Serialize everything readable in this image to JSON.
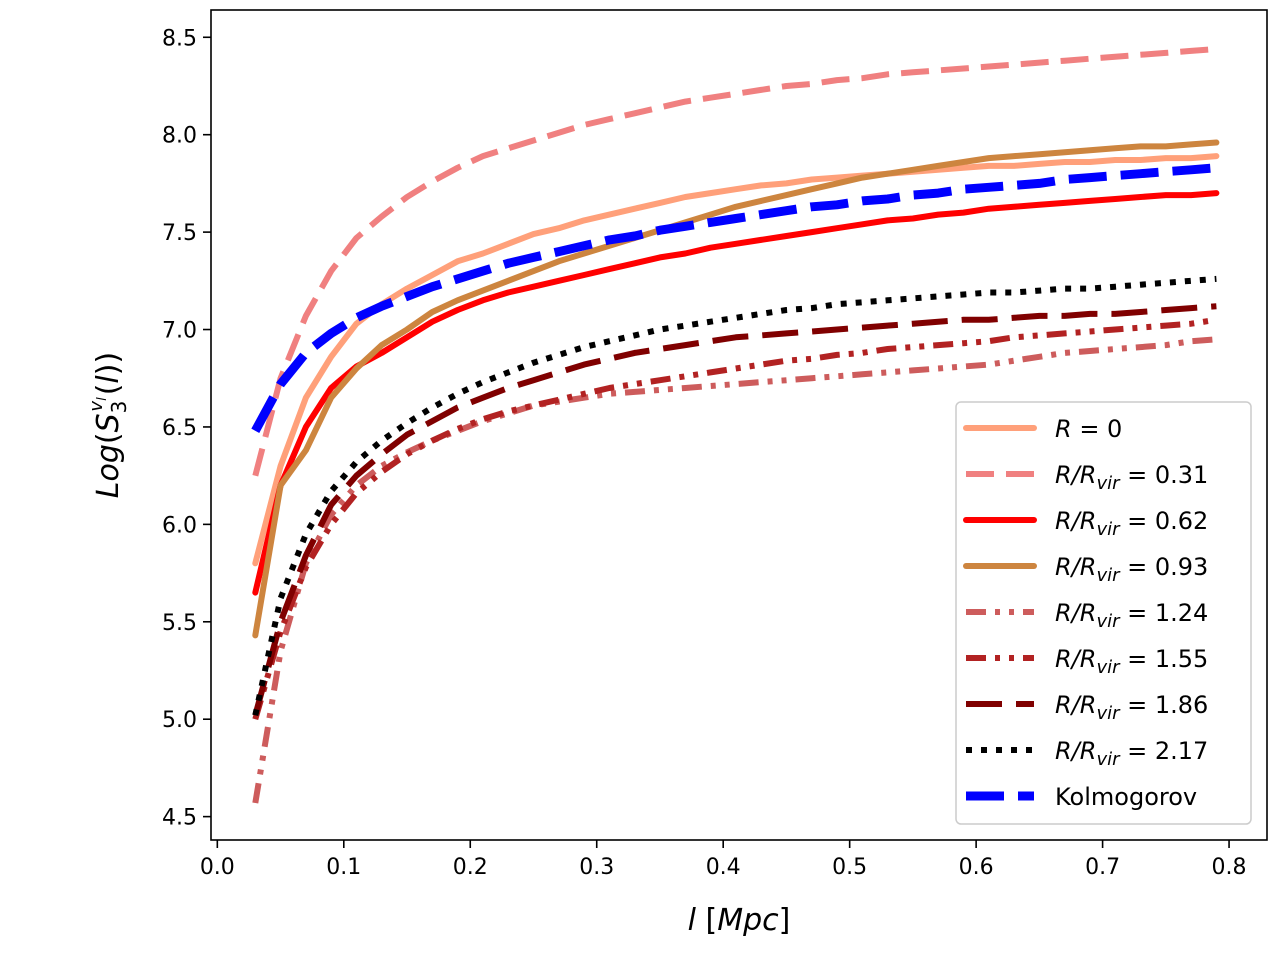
{
  "chart_data": {
    "type": "line",
    "xlabel_parts": [
      "l",
      " [",
      "Mpc",
      "]"
    ],
    "ylabel": "Log(S3^{v_l}(l))",
    "ylabel_parts": [
      "Log",
      "(",
      "S",
      "3",
      "v",
      "l",
      "(",
      "l",
      "))"
    ],
    "xlim": [
      -0.005,
      0.83
    ],
    "ylim": [
      4.38,
      8.64
    ],
    "xticks": [
      0.0,
      0.1,
      0.2,
      0.3,
      0.4,
      0.5,
      0.6,
      0.7,
      0.8
    ],
    "xtick_labels": [
      "0.0",
      "0.1",
      "0.2",
      "0.3",
      "0.4",
      "0.5",
      "0.6",
      "0.7",
      "0.8"
    ],
    "yticks": [
      4.5,
      5.0,
      5.5,
      6.0,
      6.5,
      7.0,
      7.5,
      8.0,
      8.5
    ],
    "ytick_labels": [
      "4.5",
      "5.0",
      "5.5",
      "6.0",
      "6.5",
      "7.0",
      "7.5",
      "8.0",
      "8.5"
    ],
    "legend_position": "lower-right",
    "x": [
      0.03,
      0.05,
      0.07,
      0.09,
      0.11,
      0.13,
      0.15,
      0.17,
      0.19,
      0.21,
      0.23,
      0.25,
      0.27,
      0.29,
      0.31,
      0.33,
      0.35,
      0.37,
      0.39,
      0.41,
      0.43,
      0.45,
      0.47,
      0.49,
      0.51,
      0.53,
      0.55,
      0.57,
      0.59,
      0.61,
      0.63,
      0.65,
      0.67,
      0.69,
      0.71,
      0.73,
      0.75,
      0.77,
      0.79
    ],
    "series": [
      {
        "name": "R = 0",
        "legend": {
          "main": "R",
          "sub": "",
          "rest": " = 0"
        },
        "color": "#ffa07a",
        "dash": "solid",
        "values": [
          5.8,
          6.3,
          6.65,
          6.86,
          7.03,
          7.13,
          7.21,
          7.28,
          7.35,
          7.39,
          7.44,
          7.49,
          7.52,
          7.56,
          7.59,
          7.62,
          7.65,
          7.68,
          7.7,
          7.72,
          7.74,
          7.75,
          7.77,
          7.78,
          7.79,
          7.8,
          7.81,
          7.82,
          7.83,
          7.84,
          7.84,
          7.85,
          7.86,
          7.86,
          7.87,
          7.87,
          7.88,
          7.88,
          7.89
        ]
      },
      {
        "name": "R/Rvir = 0.31",
        "legend": {
          "main": "R/R",
          "sub": "vir",
          "rest": " = 0.31"
        },
        "color": "#f08080",
        "dash": "dashed",
        "values": [
          6.25,
          6.75,
          7.07,
          7.3,
          7.47,
          7.58,
          7.68,
          7.76,
          7.83,
          7.89,
          7.93,
          7.97,
          8.01,
          8.05,
          8.08,
          8.11,
          8.14,
          8.17,
          8.19,
          8.21,
          8.23,
          8.25,
          8.26,
          8.28,
          8.29,
          8.31,
          8.32,
          8.33,
          8.34,
          8.35,
          8.36,
          8.37,
          8.38,
          8.39,
          8.4,
          8.41,
          8.42,
          8.43,
          8.44
        ]
      },
      {
        "name": "R/Rvir = 0.62",
        "legend": {
          "main": "R/R",
          "sub": "vir",
          "rest": " = 0.62"
        },
        "color": "#ff0000",
        "dash": "solid",
        "values": [
          5.65,
          6.2,
          6.5,
          6.7,
          6.81,
          6.88,
          6.96,
          7.04,
          7.1,
          7.15,
          7.19,
          7.22,
          7.25,
          7.28,
          7.31,
          7.34,
          7.37,
          7.39,
          7.42,
          7.44,
          7.46,
          7.48,
          7.5,
          7.52,
          7.54,
          7.56,
          7.57,
          7.59,
          7.6,
          7.62,
          7.63,
          7.64,
          7.65,
          7.66,
          7.67,
          7.68,
          7.69,
          7.69,
          7.7
        ]
      },
      {
        "name": "R/Rvir = 0.93",
        "legend": {
          "main": "R/R",
          "sub": "vir",
          "rest": " = 0.93"
        },
        "color": "#cd853f",
        "dash": "solid",
        "values": [
          5.43,
          6.2,
          6.38,
          6.65,
          6.8,
          6.92,
          7.0,
          7.09,
          7.15,
          7.2,
          7.25,
          7.3,
          7.35,
          7.39,
          7.43,
          7.47,
          7.51,
          7.55,
          7.59,
          7.63,
          7.66,
          7.69,
          7.72,
          7.75,
          7.78,
          7.8,
          7.82,
          7.84,
          7.86,
          7.88,
          7.89,
          7.9,
          7.91,
          7.92,
          7.93,
          7.94,
          7.94,
          7.95,
          7.96
        ]
      },
      {
        "name": "R/Rvir = 1.24",
        "legend": {
          "main": "R/R",
          "sub": "vir",
          "rest": " = 1.24"
        },
        "color": "#cd5c5c",
        "dash": "dashdotdot",
        "values": [
          4.57,
          5.35,
          5.8,
          6.05,
          6.2,
          6.3,
          6.37,
          6.43,
          6.48,
          6.53,
          6.57,
          6.61,
          6.63,
          6.65,
          6.67,
          6.68,
          6.69,
          6.7,
          6.71,
          6.72,
          6.73,
          6.74,
          6.75,
          6.76,
          6.77,
          6.78,
          6.79,
          6.8,
          6.81,
          6.82,
          6.84,
          6.86,
          6.88,
          6.89,
          6.9,
          6.91,
          6.92,
          6.94,
          6.95
        ]
      },
      {
        "name": "R/Rvir = 1.55",
        "legend": {
          "main": "R/R",
          "sub": "vir",
          "rest": " = 1.55"
        },
        "color": "#b22222",
        "dash": "dashdotdot",
        "values": [
          5.0,
          5.45,
          5.78,
          6.0,
          6.16,
          6.27,
          6.36,
          6.43,
          6.49,
          6.54,
          6.58,
          6.61,
          6.64,
          6.67,
          6.7,
          6.72,
          6.74,
          6.76,
          6.78,
          6.8,
          6.82,
          6.84,
          6.85,
          6.87,
          6.88,
          6.9,
          6.91,
          6.92,
          6.93,
          6.94,
          6.96,
          6.97,
          6.98,
          6.99,
          7.0,
          7.01,
          7.02,
          7.03,
          7.05
        ]
      },
      {
        "name": "R/Rvir = 1.86",
        "legend": {
          "main": "R/R",
          "sub": "vir",
          "rest": " = 1.86"
        },
        "color": "#800000",
        "dash": "longdash",
        "values": [
          5.02,
          5.5,
          5.84,
          6.1,
          6.25,
          6.36,
          6.46,
          6.53,
          6.6,
          6.65,
          6.7,
          6.74,
          6.78,
          6.82,
          6.85,
          6.88,
          6.9,
          6.92,
          6.94,
          6.96,
          6.97,
          6.98,
          6.99,
          7.0,
          7.01,
          7.02,
          7.03,
          7.04,
          7.05,
          7.05,
          7.06,
          7.07,
          7.07,
          7.08,
          7.08,
          7.09,
          7.1,
          7.11,
          7.12
        ]
      },
      {
        "name": "R/Rvir = 2.17",
        "legend": {
          "main": "R/R",
          "sub": "vir",
          "rest": " = 2.17"
        },
        "color": "#000000",
        "dash": "dotted",
        "values": [
          5.02,
          5.62,
          5.95,
          6.17,
          6.32,
          6.43,
          6.52,
          6.6,
          6.67,
          6.73,
          6.78,
          6.83,
          6.87,
          6.91,
          6.94,
          6.97,
          7.0,
          7.02,
          7.04,
          7.06,
          7.08,
          7.1,
          7.11,
          7.13,
          7.14,
          7.15,
          7.16,
          7.17,
          7.18,
          7.19,
          7.19,
          7.2,
          7.21,
          7.21,
          7.22,
          7.23,
          7.24,
          7.25,
          7.26
        ]
      },
      {
        "name": "Kolmogorov",
        "legend": {
          "main": "Kolmogorov",
          "sub": "",
          "rest": ""
        },
        "color": "#0000ff",
        "dash": "kolmogorov",
        "values": [
          6.48,
          6.72,
          6.88,
          6.98,
          7.06,
          7.12,
          7.17,
          7.22,
          7.26,
          7.3,
          7.34,
          7.37,
          7.4,
          7.43,
          7.46,
          7.48,
          7.51,
          7.53,
          7.55,
          7.57,
          7.59,
          7.61,
          7.63,
          7.64,
          7.66,
          7.67,
          7.69,
          7.7,
          7.72,
          7.73,
          7.74,
          7.75,
          7.77,
          7.78,
          7.79,
          7.8,
          7.81,
          7.82,
          7.83
        ]
      }
    ]
  }
}
